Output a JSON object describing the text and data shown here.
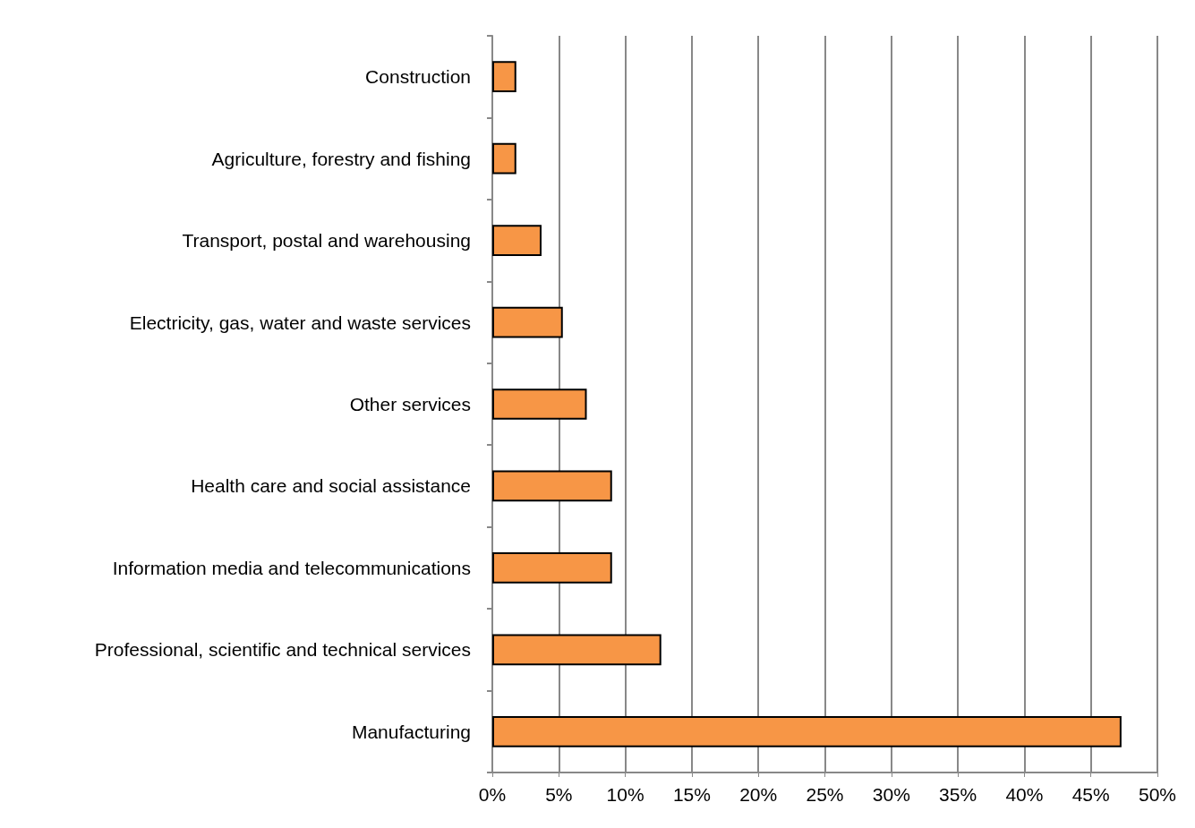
{
  "chart_data": {
    "type": "bar",
    "orientation": "horizontal",
    "categories": [
      "Construction",
      "Agriculture, forestry and fishing",
      "Transport, postal and warehousing",
      "Electricity, gas, water and waste services",
      "Other services",
      "Health care and social assistance",
      "Information media and telecommunications",
      "Professional, scientific and technical services",
      "Manufacturing"
    ],
    "values": [
      1.8,
      1.8,
      3.7,
      5.3,
      7.1,
      9.0,
      9.0,
      12.7,
      47.3
    ],
    "color": "#f79646",
    "xlim": [
      0,
      50
    ],
    "xticks": [
      {
        "value": 0,
        "label": "0%"
      },
      {
        "value": 5,
        "label": "5%"
      },
      {
        "value": 10,
        "label": "10%"
      },
      {
        "value": 15,
        "label": "15%"
      },
      {
        "value": 20,
        "label": "20%"
      },
      {
        "value": 25,
        "label": "25%"
      },
      {
        "value": 30,
        "label": "30%"
      },
      {
        "value": 35,
        "label": "35%"
      },
      {
        "value": 40,
        "label": "40%"
      },
      {
        "value": 45,
        "label": "45%"
      },
      {
        "value": 50,
        "label": "50%"
      }
    ],
    "grid": "x"
  }
}
